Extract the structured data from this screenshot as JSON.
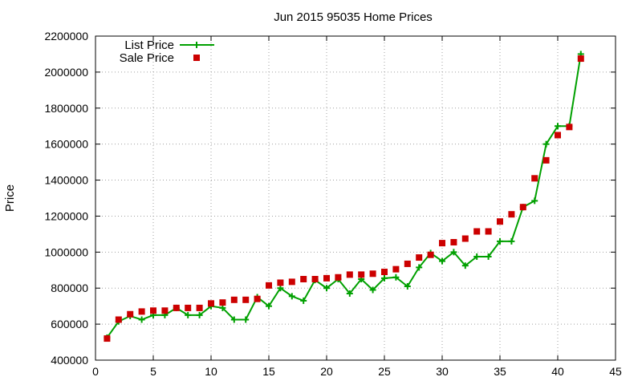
{
  "chart_data": {
    "type": "line",
    "title": "Jun 2015 95035 Home Prices",
    "xlabel": "",
    "ylabel": "Price",
    "xlim": [
      0,
      45
    ],
    "ylim": [
      400000,
      2200000
    ],
    "xticks": [
      0,
      5,
      10,
      15,
      20,
      25,
      30,
      35,
      40,
      45
    ],
    "yticks": [
      400000,
      600000,
      800000,
      1000000,
      1200000,
      1400000,
      1600000,
      1800000,
      2000000,
      2200000
    ],
    "xtick_labels": [
      "0",
      "5",
      "10",
      "15",
      "20",
      "25",
      "30",
      "35",
      "40",
      "45"
    ],
    "ytick_labels": [
      "400000",
      "600000",
      "800000",
      "1000000",
      "1200000",
      "1400000",
      "1600000",
      "1800000",
      "2000000",
      "2200000"
    ],
    "grid": true,
    "legend_position": "top-left",
    "series": [
      {
        "name": "List Price",
        "style": "line-with-plus-markers",
        "color": "#00a000",
        "x": [
          1,
          2,
          3,
          4,
          5,
          6,
          7,
          8,
          9,
          10,
          11,
          12,
          13,
          14,
          15,
          16,
          17,
          18,
          19,
          20,
          21,
          22,
          23,
          24,
          25,
          26,
          27,
          28,
          29,
          30,
          31,
          32,
          33,
          34,
          35,
          36,
          37,
          38,
          39,
          40,
          41,
          42
        ],
        "values": [
          525000,
          615000,
          645000,
          625000,
          650000,
          650000,
          690000,
          650000,
          650000,
          700000,
          690000,
          625000,
          625000,
          750000,
          700000,
          800000,
          755000,
          730000,
          845000,
          800000,
          850000,
          770000,
          850000,
          790000,
          855000,
          860000,
          810000,
          915000,
          995000,
          950000,
          1000000,
          925000,
          975000,
          975000,
          1060000,
          1060000,
          1250000,
          1285000,
          1600000,
          1700000,
          1700000,
          2100000
        ]
      },
      {
        "name": "Sale Price",
        "style": "square-markers",
        "color": "#cc0000",
        "x": [
          1,
          2,
          3,
          4,
          5,
          6,
          7,
          8,
          9,
          10,
          11,
          12,
          13,
          14,
          15,
          16,
          17,
          18,
          19,
          20,
          21,
          22,
          23,
          24,
          25,
          26,
          27,
          28,
          29,
          30,
          31,
          32,
          33,
          34,
          35,
          36,
          37,
          38,
          39,
          40,
          41,
          42
        ],
        "values": [
          520000,
          625000,
          655000,
          670000,
          675000,
          675000,
          690000,
          690000,
          690000,
          715000,
          720000,
          735000,
          735000,
          740000,
          815000,
          830000,
          835000,
          850000,
          850000,
          855000,
          860000,
          875000,
          875000,
          880000,
          890000,
          905000,
          935000,
          970000,
          985000,
          1050000,
          1055000,
          1075000,
          1115000,
          1115000,
          1170000,
          1210000,
          1250000,
          1410000,
          1510000,
          1650000,
          1695000,
          2075000
        ]
      }
    ]
  }
}
